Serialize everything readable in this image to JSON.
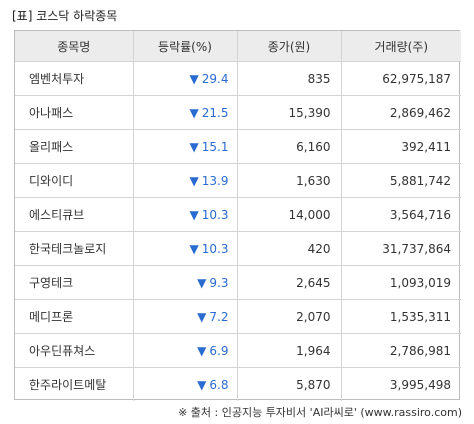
{
  "title": "[표] 코스닥 하락종목",
  "columns": [
    "종목명",
    "등락률(%)",
    "종가(원)",
    "거래량(주)"
  ],
  "down_arrow": "▼",
  "rows": [
    {
      "name": "엠벤처투자",
      "rate": "29.4",
      "price": "835",
      "volume": "62,975,187"
    },
    {
      "name": "아나패스",
      "rate": "21.5",
      "price": "15,390",
      "volume": "2,869,462"
    },
    {
      "name": "올리패스",
      "rate": "15.1",
      "price": "6,160",
      "volume": "392,411"
    },
    {
      "name": "디와이디",
      "rate": "13.9",
      "price": "1,630",
      "volume": "5,881,742"
    },
    {
      "name": "에스티큐브",
      "rate": "10.3",
      "price": "14,000",
      "volume": "3,564,716"
    },
    {
      "name": "한국테크놀로지",
      "rate": "10.3",
      "price": "420",
      "volume": "31,737,864"
    },
    {
      "name": "구영테크",
      "rate": "9.3",
      "price": "2,645",
      "volume": "1,093,019"
    },
    {
      "name": "메디프론",
      "rate": "7.2",
      "price": "2,070",
      "volume": "1,535,311"
    },
    {
      "name": "아우딘퓨쳐스",
      "rate": "6.9",
      "price": "1,964",
      "volume": "2,786,981"
    },
    {
      "name": "한주라이트메탈",
      "rate": "6.8",
      "price": "5,870",
      "volume": "3,995,498"
    }
  ],
  "source": "※ 출처 : 인공지능 투자비서 'AI라씨로' (www.rassiro.com)",
  "colors": {
    "down": "#2a6bd1",
    "header_bg": "#ececec",
    "border": "#d4d4d4"
  }
}
